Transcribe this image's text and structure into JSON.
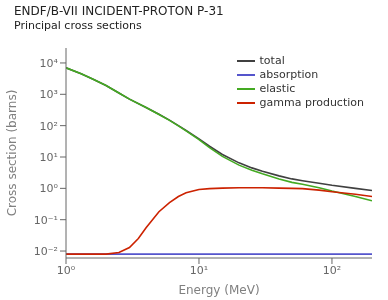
{
  "chart_data": {
    "type": "line",
    "title": "ENDF/B-VII INCIDENT-PROTON P-31",
    "subtitle": "Principal cross sections",
    "xlabel": "Energy (MeV)",
    "ylabel": "Cross section (barns)",
    "log": true,
    "grid": false,
    "legend": "upper right",
    "xlim": [
      1.0,
      200.0
    ],
    "ylim": [
      0.006,
      30000.0
    ],
    "xticks": [
      {
        "value": 1,
        "label": "10⁰"
      },
      {
        "value": 10,
        "label": "10¹"
      },
      {
        "value": 100,
        "label": "10²"
      }
    ],
    "yticks": [
      {
        "value": 0.01,
        "label": "10⁻²"
      },
      {
        "value": 0.1,
        "label": "10⁻¹"
      },
      {
        "value": 1,
        "label": "10⁰"
      },
      {
        "value": 10,
        "label": "10¹"
      },
      {
        "value": 100,
        "label": "10²"
      },
      {
        "value": 1000,
        "label": "10³"
      },
      {
        "value": 10000,
        "label": "10⁴"
      }
    ],
    "series": [
      {
        "name": "total",
        "color": "#404040",
        "x": [
          1.0,
          1.3,
          1.6,
          2.0,
          2.5,
          3.0,
          4.0,
          5.0,
          6.0,
          7.0,
          8.0,
          10.0,
          12.0,
          15.0,
          20.0,
          25.0,
          30.0,
          40.0,
          50.0,
          60.0,
          80.0,
          100.0,
          150.0,
          200.0
        ],
        "values": [
          7000,
          4500,
          3000,
          1900,
          1100,
          700,
          380,
          230,
          150,
          100,
          70,
          38,
          22,
          12,
          6.5,
          4.5,
          3.5,
          2.5,
          2.0,
          1.75,
          1.45,
          1.25,
          1.0,
          0.85
        ]
      },
      {
        "name": "absorption",
        "color": "#5555cc",
        "x": [
          1.0,
          200.0
        ],
        "values": [
          0.008,
          0.008
        ]
      },
      {
        "name": "elastic",
        "color": "#44aa22",
        "x": [
          1.0,
          1.3,
          1.6,
          2.0,
          2.5,
          3.0,
          4.0,
          5.0,
          6.0,
          7.0,
          8.0,
          10.0,
          12.0,
          15.0,
          20.0,
          25.0,
          30.0,
          40.0,
          50.0,
          60.0,
          80.0,
          100.0,
          150.0,
          200.0
        ],
        "values": [
          7000,
          4500,
          3000,
          1900,
          1100,
          700,
          378,
          228,
          148,
          98,
          68,
          36,
          20,
          10.5,
          5.5,
          3.8,
          2.9,
          2.0,
          1.55,
          1.35,
          1.05,
          0.82,
          0.55,
          0.4
        ]
      },
      {
        "name": "gamma production",
        "color": "#cc2200",
        "x": [
          1.0,
          1.5,
          2.0,
          2.5,
          3.0,
          3.5,
          4.0,
          5.0,
          6.0,
          7.0,
          8.0,
          10.0,
          12.0,
          15.0,
          20.0,
          25.0,
          30.0,
          40.0,
          50.0,
          60.0,
          80.0,
          100.0,
          150.0,
          200.0
        ],
        "values": [
          0.008,
          0.008,
          0.008,
          0.009,
          0.013,
          0.025,
          0.055,
          0.18,
          0.35,
          0.55,
          0.72,
          0.92,
          0.98,
          1.02,
          1.05,
          1.05,
          1.05,
          1.02,
          1.0,
          0.98,
          0.88,
          0.78,
          0.65,
          0.55
        ]
      }
    ]
  }
}
